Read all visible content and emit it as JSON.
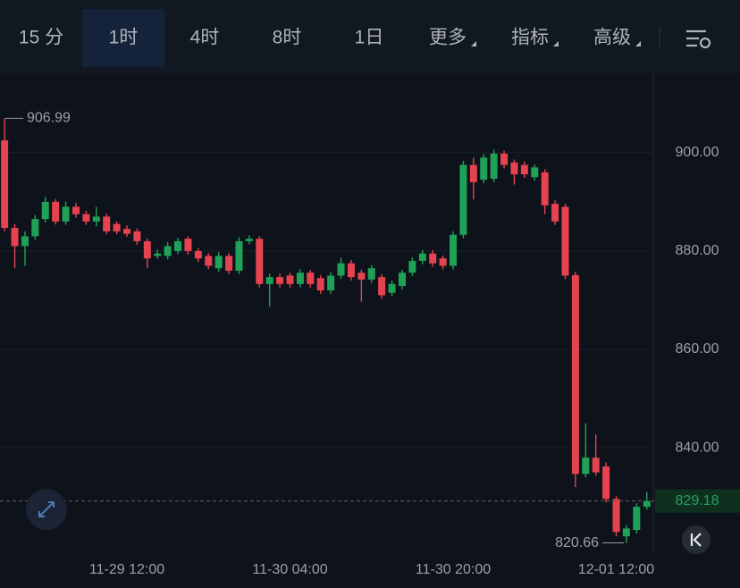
{
  "tabs": [
    {
      "label": "15 分",
      "selected": false
    },
    {
      "label": "1时",
      "selected": true
    },
    {
      "label": "4时",
      "selected": false
    },
    {
      "label": "8时",
      "selected": false
    },
    {
      "label": "1日",
      "selected": false
    },
    {
      "label": "更多",
      "selected": false
    },
    {
      "label": "指标",
      "selected": false
    },
    {
      "label": "高级",
      "selected": false
    }
  ],
  "chart_data": {
    "type": "candlestick",
    "categories": [
      null,
      null,
      null,
      null,
      null,
      null,
      null,
      null,
      null,
      null,
      null,
      null,
      "11-29 12:00",
      null,
      null,
      null,
      null,
      null,
      null,
      null,
      null,
      null,
      null,
      null,
      null,
      null,
      null,
      null,
      "11-30 04:00",
      null,
      null,
      null,
      null,
      null,
      null,
      null,
      null,
      null,
      null,
      null,
      null,
      null,
      null,
      null,
      "11-30 20:00",
      null,
      null,
      null,
      null,
      null,
      null,
      null,
      null,
      null,
      null,
      null,
      null,
      null,
      null,
      null,
      "12-01 12:00",
      null,
      null,
      null
    ],
    "open": [
      902.5,
      884.7,
      881,
      883,
      886.5,
      890,
      886,
      889,
      887.5,
      886,
      887,
      885.5,
      884.5,
      884,
      882,
      879,
      879,
      880,
      882.5,
      880,
      879,
      876.5,
      879,
      876,
      882,
      882.5,
      873.3,
      874.7,
      875,
      873.3,
      875.6,
      874.5,
      872,
      875,
      877.5,
      875.6,
      874.2,
      874.7,
      871.5,
      872.9,
      875.6,
      878,
      879.5,
      878.5,
      877,
      883.3,
      897.5,
      894.5,
      894.7,
      899.8,
      898,
      897.5,
      895,
      896,
      889.6,
      889,
      875.1,
      834.7,
      838,
      836.2,
      829.6,
      822,
      823.3,
      828
    ],
    "high": [
      906.99,
      885.5,
      884,
      887.3,
      891,
      890.6,
      890,
      889.8,
      888.2,
      889,
      887.6,
      886,
      885.2,
      884.6,
      882.5,
      880.3,
      881.8,
      882.7,
      883,
      880.6,
      879.6,
      879.8,
      879.6,
      882.8,
      883.2,
      883,
      875.4,
      875.4,
      875.6,
      876.3,
      876.2,
      875.1,
      875.7,
      878.6,
      878.2,
      876.2,
      877.1,
      875.3,
      874,
      876.2,
      878.7,
      880.2,
      880.2,
      879.1,
      884,
      898.3,
      899,
      899.7,
      900.6,
      900.4,
      898.6,
      898.2,
      897.6,
      896.6,
      890.3,
      889.6,
      875.8,
      845,
      842.7,
      837,
      830.2,
      824.3,
      828.7,
      831
    ],
    "low": [
      884,
      876.5,
      877,
      882.3,
      885.8,
      885.4,
      885.3,
      886.8,
      885.3,
      885,
      883.4,
      883.4,
      882.9,
      881.3,
      876.5,
      878.4,
      878.3,
      879.4,
      879.3,
      877.8,
      876.3,
      875.8,
      875.3,
      875.3,
      881.4,
      872.6,
      868.7,
      872.6,
      872.6,
      872.6,
      872.6,
      871.3,
      871.3,
      874.3,
      874,
      869.7,
      873.5,
      870.3,
      870.8,
      872.2,
      874.9,
      877.3,
      876.8,
      876.3,
      876.3,
      882.6,
      890.5,
      893.8,
      894,
      896.8,
      893.5,
      894.9,
      894.3,
      887.5,
      885.3,
      874.3,
      832,
      834,
      834.3,
      828.9,
      822,
      820.66,
      822.6,
      827.4
    ],
    "close": [
      884.7,
      881,
      883,
      886.5,
      890,
      886,
      889,
      887.5,
      886,
      887,
      884,
      884,
      883.5,
      882,
      878.5,
      879.5,
      881,
      882,
      880,
      878.5,
      877,
      879,
      876,
      882,
      882.5,
      873.3,
      874.7,
      873.3,
      873.3,
      875.6,
      873.3,
      872,
      875,
      877.5,
      874.7,
      874.2,
      876.5,
      871,
      873.3,
      875.6,
      878,
      879.5,
      877.5,
      877,
      883.3,
      897.5,
      894,
      899,
      899.8,
      897.5,
      895.6,
      895.6,
      897,
      889.3,
      886,
      875,
      834.7,
      838,
      835,
      829.6,
      822.9,
      823.6,
      828,
      829.18
    ],
    "up_color": "#1fa157",
    "down_color": "#e5434f",
    "ylim": [
      818.4,
      916.5
    ],
    "yticks": [
      {
        "value": 840,
        "label": "840.00"
      },
      {
        "value": 860,
        "label": "860.00"
      },
      {
        "value": 880,
        "label": "880.00"
      },
      {
        "value": 900,
        "label": "900.00"
      }
    ],
    "grid": true,
    "max_price": 906.99,
    "min_price": 820.66,
    "last_price": 829.18
  }
}
